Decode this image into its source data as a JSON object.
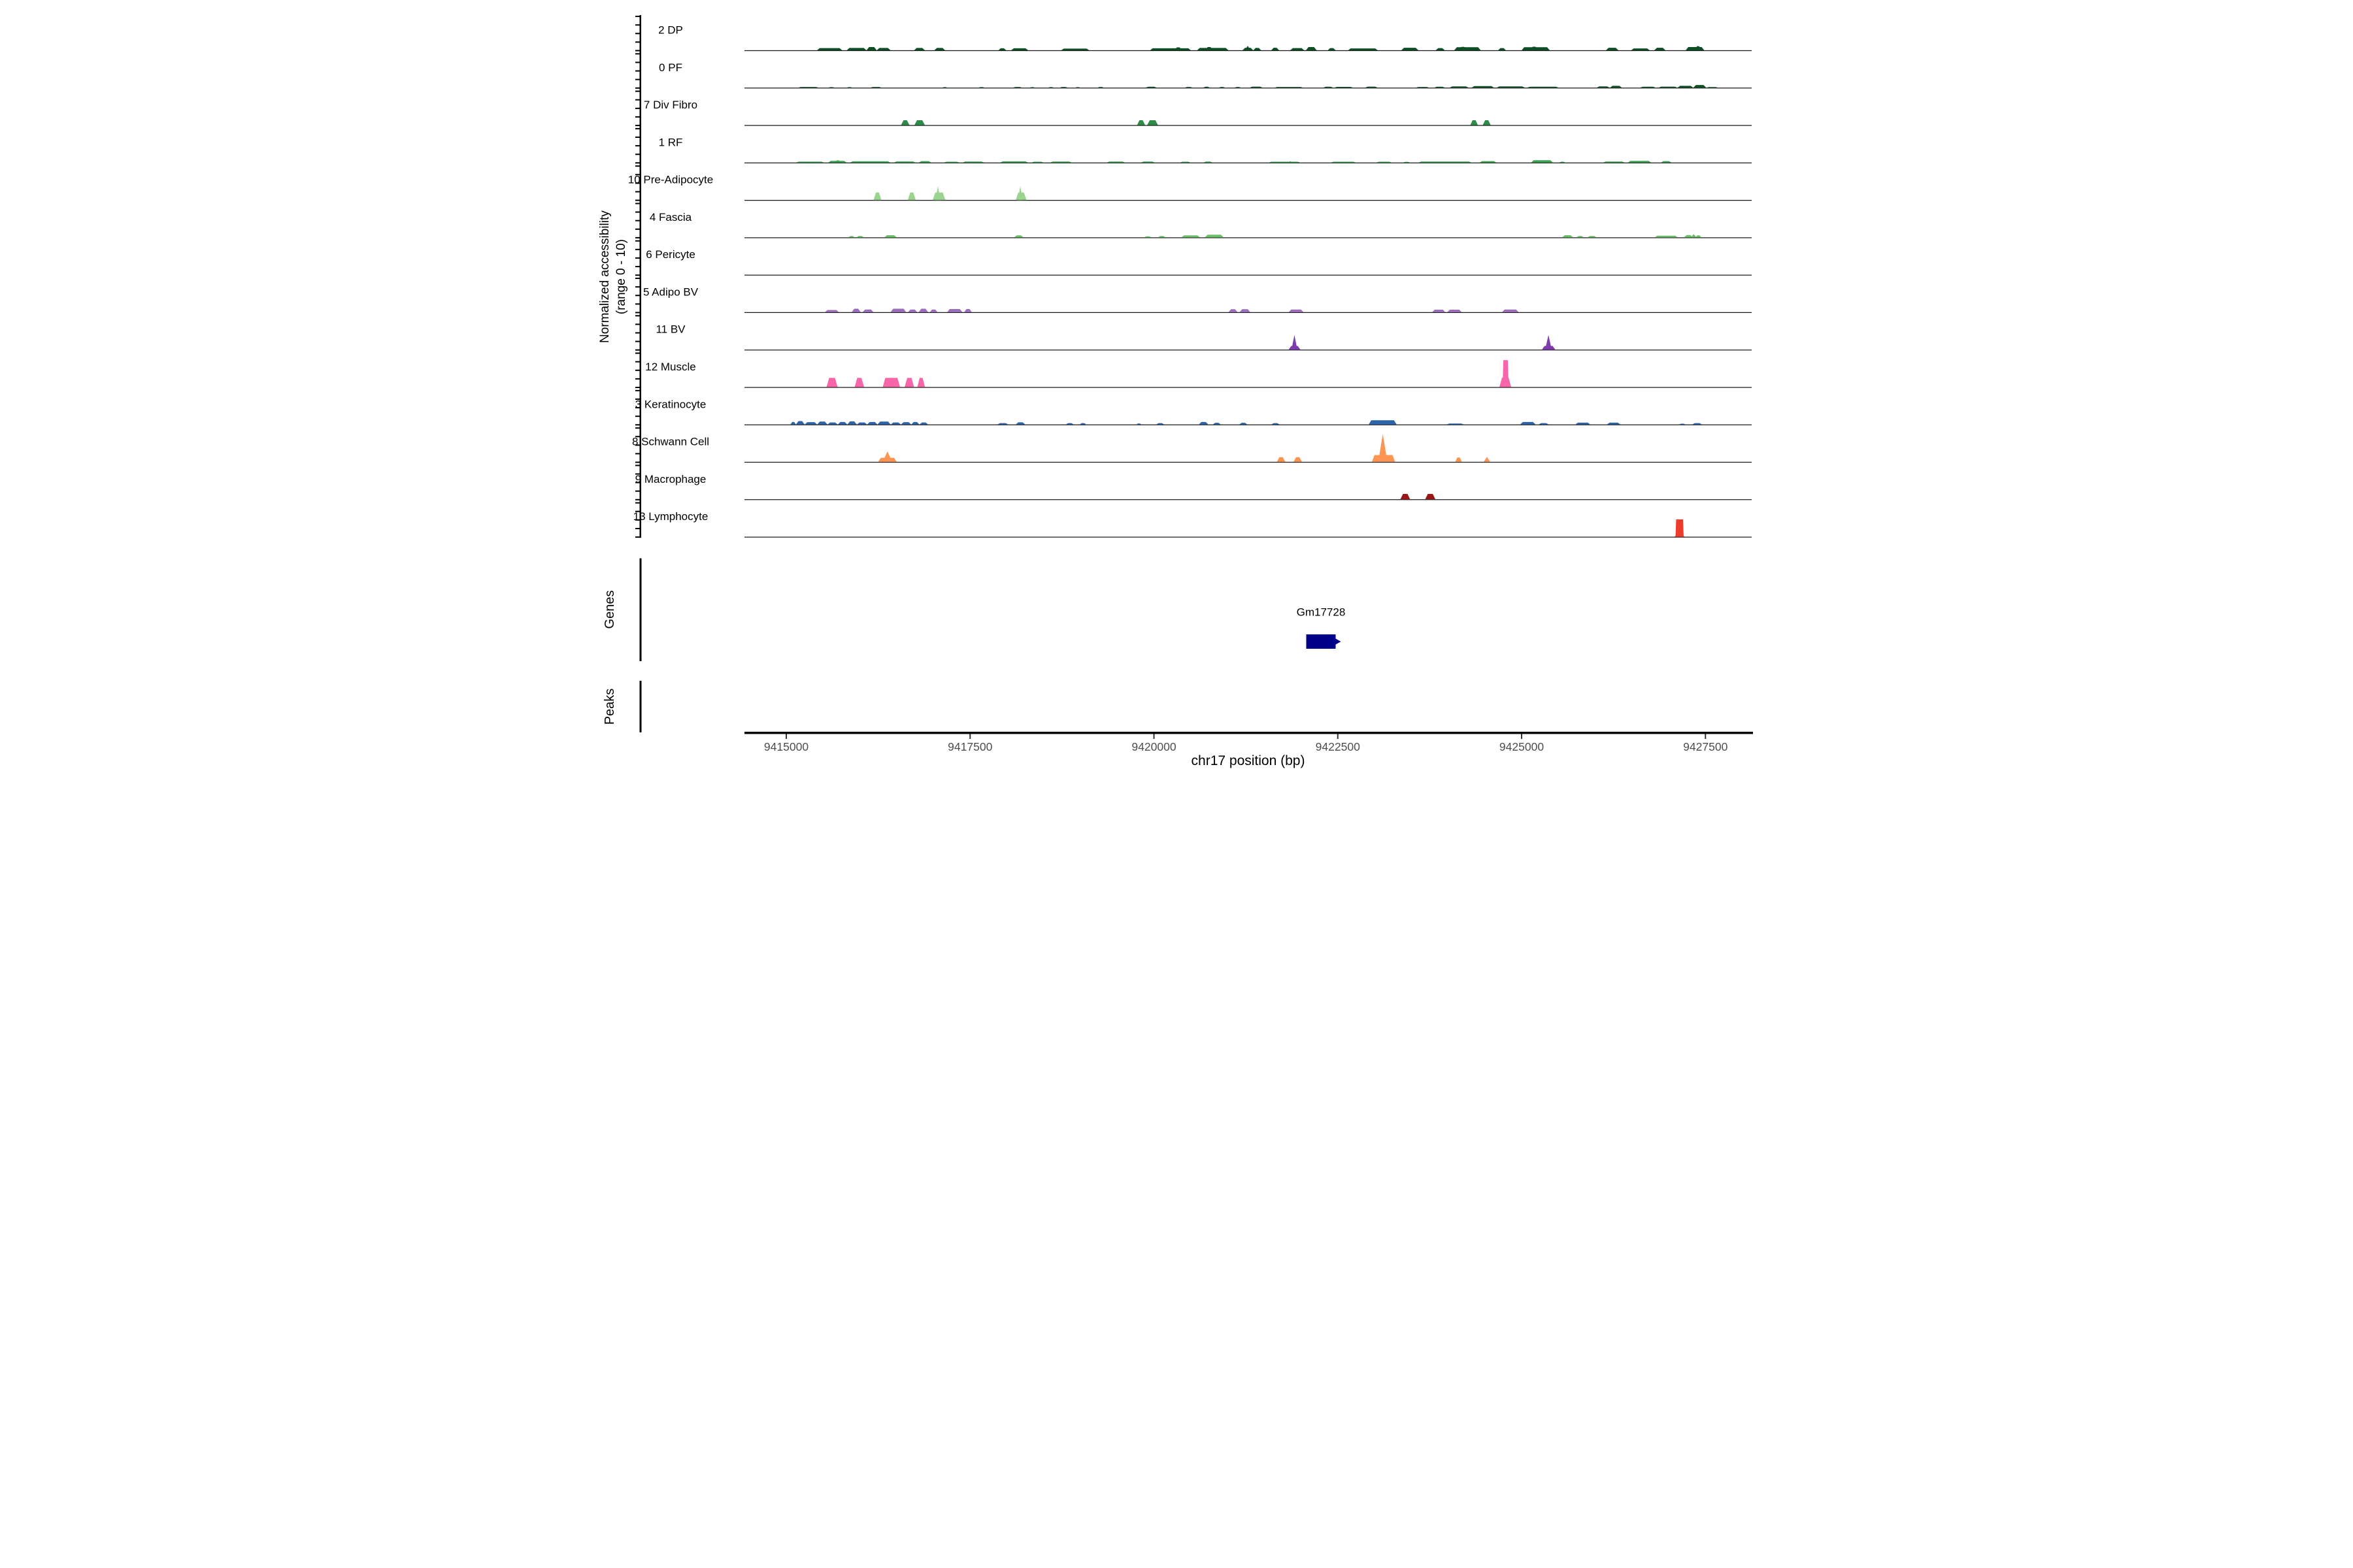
{
  "figure": {
    "y_axis_title_line1": "Normalized accessibility",
    "y_axis_title_line2": "(range 0 - 10)",
    "x_axis_title": "chr17 position (bp)",
    "genes_section_label": "Genes",
    "peaks_section_label": "Peaks",
    "colors": {
      "background": "#ffffff",
      "baseline": "#1a1a1a",
      "axis_line": "#000000",
      "axis_tick": "#333333",
      "axis_tick_label": "#4d4d4d",
      "track_label_text": "#000000",
      "gene_body": "#00008b",
      "gene_label_text": "#000000"
    }
  },
  "chart_data": {
    "type": "area",
    "title": "",
    "xlabel": "chr17 position (bp)",
    "ylabel": "Normalized accessibility (range 0 - 10)",
    "x_ticks": [
      9415000,
      9417500,
      9420000,
      9422500,
      9425000,
      9427500
    ],
    "x_range": [
      9414440,
      9428130
    ],
    "per_track_y_range": [
      0,
      10
    ],
    "grid": false,
    "gene": {
      "name": "Gm17728",
      "start": 9422071,
      "end": 9422471,
      "strand": "+"
    },
    "peaks_section": {
      "label": "Peaks",
      "intervals": []
    },
    "tracks": [
      {
        "name": "2 DP",
        "color": "#0e4e25",
        "peaks": [
          [
            9415418,
            9415760,
            0.65
          ],
          [
            9415822,
            9416090,
            0.7
          ],
          [
            9416090,
            9416230,
            0.95
          ],
          [
            9416230,
            9416418,
            0.7
          ],
          [
            9416738,
            9416885,
            0.7
          ],
          [
            9417013,
            9417160,
            0.7
          ],
          [
            9417885,
            9417991,
            0.6
          ],
          [
            9418058,
            9418289,
            0.6
          ],
          [
            9418738,
            9419120,
            0.5
          ],
          [
            9419947,
            9420502,
            0.6
          ],
          [
            9420280,
            9420380,
            0.85
          ],
          [
            9420587,
            9421013,
            0.7
          ],
          [
            9420700,
            9420800,
            0.95
          ],
          [
            9421204,
            9421350,
            0.75
          ],
          [
            9421240,
            9421310,
            1.35,
            "s"
          ],
          [
            9421350,
            9421458,
            0.7
          ],
          [
            9421595,
            9421702,
            0.75
          ],
          [
            9421853,
            9422044,
            0.65
          ],
          [
            9422066,
            9422213,
            0.95
          ],
          [
            9422364,
            9422471,
            0.65
          ],
          [
            9422640,
            9423044,
            0.55
          ],
          [
            9423364,
            9423596,
            0.75
          ],
          [
            9423831,
            9423956,
            0.65
          ],
          [
            9424084,
            9424444,
            0.9
          ],
          [
            9424150,
            9424250,
            1.0
          ],
          [
            9424680,
            9424787,
            0.65
          ],
          [
            9425000,
            9425382,
            0.9
          ],
          [
            9425120,
            9425220,
            1.05
          ],
          [
            9426147,
            9426316,
            0.75
          ],
          [
            9426489,
            9426742,
            0.55
          ],
          [
            9426804,
            9426956,
            0.75
          ],
          [
            9427231,
            9427484,
            0.95
          ],
          [
            9427360,
            9427440,
            1.2
          ]
        ]
      },
      {
        "name": "0 PF",
        "color": "#0e4e25",
        "peaks": [
          [
            9415160,
            9415440,
            0.22
          ],
          [
            9415570,
            9415660,
            0.18
          ],
          [
            9415820,
            9415900,
            0.18
          ],
          [
            9416140,
            9416300,
            0.22
          ],
          [
            9417120,
            9417190,
            0.18
          ],
          [
            9417610,
            9417700,
            0.18
          ],
          [
            9418080,
            9418210,
            0.22
          ],
          [
            9418310,
            9418380,
            0.18
          ],
          [
            9418560,
            9418640,
            0.18
          ],
          [
            9418715,
            9418830,
            0.22
          ],
          [
            9418930,
            9419000,
            0.18
          ],
          [
            9419230,
            9419320,
            0.22
          ],
          [
            9419885,
            9420040,
            0.28
          ],
          [
            9420415,
            9420530,
            0.22
          ],
          [
            9420670,
            9420760,
            0.28
          ],
          [
            9420880,
            9420970,
            0.22
          ],
          [
            9421095,
            9421185,
            0.22
          ],
          [
            9421300,
            9421480,
            0.32
          ],
          [
            9421640,
            9422030,
            0.22
          ],
          [
            9422300,
            9422440,
            0.28
          ],
          [
            9422450,
            9422710,
            0.25
          ],
          [
            9422870,
            9423045,
            0.32
          ],
          [
            9423560,
            9423745,
            0.22
          ],
          [
            9423810,
            9423960,
            0.28
          ],
          [
            9424020,
            9424280,
            0.38
          ],
          [
            9424320,
            9424625,
            0.48
          ],
          [
            9424660,
            9425045,
            0.38
          ],
          [
            9425075,
            9425505,
            0.28
          ],
          [
            9426020,
            9426200,
            0.4
          ],
          [
            9426200,
            9426365,
            0.55
          ],
          [
            9426610,
            9426825,
            0.28
          ],
          [
            9426860,
            9427120,
            0.32
          ],
          [
            9427120,
            9427335,
            0.55
          ],
          [
            9427335,
            9427510,
            0.8
          ],
          [
            9427510,
            9427675,
            0.2
          ]
        ]
      },
      {
        "name": "7 Div Fibro",
        "color": "#2e8b47",
        "peaks": [
          [
            9416560,
            9416675,
            1.45
          ],
          [
            9416742,
            9416885,
            1.45
          ],
          [
            9419770,
            9419880,
            1.45
          ],
          [
            9419907,
            9420055,
            1.45
          ],
          [
            9424302,
            9424405,
            1.45
          ],
          [
            9424471,
            9424580,
            1.45
          ]
        ]
      },
      {
        "name": "1 RF",
        "color": "#38a152",
        "peaks": [
          [
            9415130,
            9415515,
            0.28
          ],
          [
            9415569,
            9415822,
            0.5
          ],
          [
            9415660,
            9415740,
            0.65
          ],
          [
            9415867,
            9416418,
            0.38
          ],
          [
            9416462,
            9416760,
            0.32
          ],
          [
            9416800,
            9416973,
            0.42
          ],
          [
            9417142,
            9417356,
            0.25
          ],
          [
            9417396,
            9417693,
            0.3
          ],
          [
            9417907,
            9418289,
            0.35
          ],
          [
            9418333,
            9418502,
            0.25
          ],
          [
            9418587,
            9418884,
            0.3
          ],
          [
            9419356,
            9419609,
            0.3
          ],
          [
            9419822,
            9420013,
            0.3
          ],
          [
            9420351,
            9420502,
            0.25
          ],
          [
            9420671,
            9420800,
            0.3
          ],
          [
            9421560,
            9421990,
            0.25
          ],
          [
            9421830,
            9421880,
            0.42,
            "s"
          ],
          [
            9422405,
            9422747,
            0.25
          ],
          [
            9423022,
            9423236,
            0.25
          ],
          [
            9423382,
            9423489,
            0.2
          ],
          [
            9423596,
            9424320,
            0.3
          ],
          [
            9424427,
            9424658,
            0.42
          ],
          [
            9425129,
            9425427,
            0.68
          ],
          [
            9425511,
            9425596,
            0.25
          ],
          [
            9426107,
            9426404,
            0.3
          ],
          [
            9426444,
            9426764,
            0.5
          ],
          [
            9426893,
            9427040,
            0.42
          ]
        ]
      },
      {
        "name": "10 Pre-Adipocyte",
        "color": "#9bd48f",
        "peaks": [
          [
            9416187,
            9416293,
            2.2
          ],
          [
            9416653,
            9416760,
            2.2
          ],
          [
            9416991,
            9417164,
            2.2
          ],
          [
            9417030,
            9417095,
            4.1,
            "s"
          ],
          [
            9418120,
            9418267,
            2.2
          ],
          [
            9418150,
            9418215,
            4.1,
            "s"
          ]
        ]
      },
      {
        "name": "4 Fascia",
        "color": "#6abf69",
        "peaks": [
          [
            9415844,
            9415930,
            0.4
          ],
          [
            9415951,
            9416060,
            0.4
          ],
          [
            9416333,
            9416502,
            0.65
          ],
          [
            9418098,
            9418227,
            0.6
          ],
          [
            9419862,
            9419970,
            0.3
          ],
          [
            9420053,
            9420160,
            0.4
          ],
          [
            9420373,
            9420627,
            0.6
          ],
          [
            9420693,
            9420947,
            0.8
          ],
          [
            9425551,
            9425702,
            0.65
          ],
          [
            9425742,
            9425849,
            0.4
          ],
          [
            9425893,
            9426022,
            0.4
          ],
          [
            9426809,
            9427124,
            0.5
          ],
          [
            9427209,
            9427330,
            0.7
          ],
          [
            9427300,
            9427380,
            0.95,
            "s"
          ],
          [
            9427365,
            9427444,
            0.6
          ]
        ]
      },
      {
        "name": "6 Pericyte",
        "color": "#3bbca8",
        "peaks": []
      },
      {
        "name": "5 Adipo BV",
        "color": "#9a6dbb",
        "peaks": [
          [
            9415524,
            9415716,
            0.65
          ],
          [
            9415889,
            9416013,
            1.05
          ],
          [
            9416036,
            9416187,
            0.8
          ],
          [
            9416418,
            9416631,
            1.05
          ],
          [
            9416653,
            9416782,
            0.8
          ],
          [
            9416800,
            9416929,
            1.05
          ],
          [
            9416951,
            9417058,
            0.8
          ],
          [
            9417187,
            9417396,
            0.95
          ],
          [
            9417418,
            9417524,
            0.95
          ],
          [
            9421013,
            9421138,
            0.9
          ],
          [
            9421164,
            9421311,
            0.9
          ],
          [
            9421831,
            9422035,
            0.8
          ],
          [
            9423782,
            9423964,
            0.75
          ],
          [
            9423987,
            9424187,
            0.75
          ],
          [
            9424733,
            9424960,
            0.8
          ]
        ]
      },
      {
        "name": "11 BV",
        "color": "#7d3cab",
        "peaks": [
          [
            9421831,
            9421991,
            1.1
          ],
          [
            9421870,
            9421950,
            4.3,
            "s"
          ],
          [
            9425276,
            9425458,
            1.1
          ],
          [
            9425320,
            9425410,
            4.3,
            "s"
          ]
        ]
      },
      {
        "name": "12 Muscle",
        "color": "#f666a9",
        "peaks": [
          [
            9415547,
            9415698,
            2.7
          ],
          [
            9415929,
            9416058,
            2.7
          ],
          [
            9416311,
            9416547,
            2.7
          ],
          [
            9416609,
            9416738,
            2.7
          ],
          [
            9416782,
            9416885,
            2.7
          ],
          [
            9424698,
            9424858,
            2.8
          ],
          [
            9424742,
            9424822,
            7.9,
            "c"
          ]
        ]
      },
      {
        "name": "3 Keratinocyte",
        "color": "#2c63a8",
        "peaks": [
          [
            9415057,
            9415130,
            0.75
          ],
          [
            9415130,
            9415250,
            1.0
          ],
          [
            9415250,
            9415420,
            0.7
          ],
          [
            9415420,
            9415560,
            0.85
          ],
          [
            9415560,
            9415700,
            0.6
          ],
          [
            9415700,
            9415830,
            0.75
          ],
          [
            9415830,
            9415960,
            0.9
          ],
          [
            9415960,
            9416100,
            0.6
          ],
          [
            9416100,
            9416240,
            0.75
          ],
          [
            9416240,
            9416420,
            0.85
          ],
          [
            9416420,
            9416560,
            0.6
          ],
          [
            9416560,
            9416700,
            0.7
          ],
          [
            9416700,
            9416810,
            0.75
          ],
          [
            9416810,
            9416930,
            0.6
          ],
          [
            9417870,
            9418020,
            0.4
          ],
          [
            9418120,
            9418250,
            0.65
          ],
          [
            9418800,
            9418910,
            0.4
          ],
          [
            9418990,
            9419080,
            0.4
          ],
          [
            9419760,
            9419830,
            0.3
          ],
          [
            9420030,
            9420140,
            0.4
          ],
          [
            9420610,
            9420740,
            0.75
          ],
          [
            9420800,
            9420910,
            0.5
          ],
          [
            9421160,
            9421270,
            0.5
          ],
          [
            9421595,
            9421710,
            0.4
          ],
          [
            9422920,
            9423300,
            1.25
          ],
          [
            9423980,
            9424215,
            0.3
          ],
          [
            9424980,
            9425190,
            0.75
          ],
          [
            9425230,
            9425370,
            0.4
          ],
          [
            9425730,
            9425935,
            0.55
          ],
          [
            9426160,
            9426345,
            0.55
          ],
          [
            9427140,
            9427230,
            0.25
          ],
          [
            9427320,
            9427455,
            0.4
          ]
        ]
      },
      {
        "name": "8 Schwann Cell",
        "color": "#fd9552",
        "peaks": [
          [
            9416249,
            9416502,
            1.2
          ],
          [
            9416310,
            9416440,
            3.1,
            "s"
          ],
          [
            9421671,
            9421787,
            1.4
          ],
          [
            9421898,
            9422013,
            1.4
          ],
          [
            9422964,
            9423280,
            2.0
          ],
          [
            9423050,
            9423175,
            8.2,
            "s"
          ],
          [
            9424098,
            9424187,
            1.3
          ],
          [
            9424484,
            9424573,
            1.5,
            "s"
          ]
        ]
      },
      {
        "name": "9 Macrophage",
        "color": "#9b1616",
        "peaks": [
          [
            9423351,
            9423484,
            1.6
          ],
          [
            9423689,
            9423827,
            1.6
          ]
        ]
      },
      {
        "name": "13 Lymphocyte",
        "color": "#ee3c2c",
        "peaks": [
          [
            9427080,
            9427215,
            0.8
          ],
          [
            9427093,
            9427204,
            5.1,
            "c"
          ]
        ]
      }
    ]
  }
}
